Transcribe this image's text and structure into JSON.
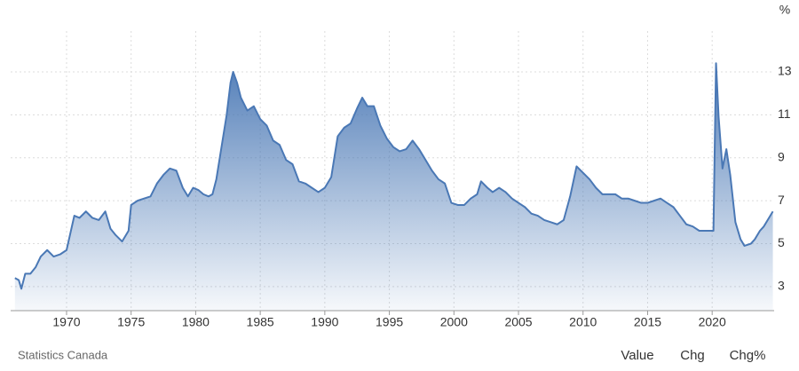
{
  "chart_data": {
    "type": "area",
    "unit": "%",
    "source": "Statistics Canada",
    "buttons": [
      "Value",
      "Chg",
      "Chg%"
    ],
    "active_button": 0,
    "color": "#4a78b5",
    "grid": true,
    "xlim": [
      1965.67,
      2024.8
    ],
    "xticks": [
      1970,
      1975,
      1980,
      1985,
      1990,
      1995,
      2000,
      2005,
      2010,
      2015,
      2020
    ],
    "ylim": [
      1.88,
      14.9
    ],
    "yticks": [
      3,
      5,
      7,
      9,
      11,
      13
    ],
    "x": [
      1966.0,
      1966.3,
      1966.5,
      1966.8,
      1967.2,
      1967.6,
      1968.0,
      1968.5,
      1969.0,
      1969.5,
      1970.0,
      1970.3,
      1970.6,
      1971.0,
      1971.5,
      1972.0,
      1972.5,
      1973.0,
      1973.4,
      1973.8,
      1974.3,
      1974.8,
      1975.0,
      1975.5,
      1976.0,
      1976.5,
      1977.0,
      1977.5,
      1978.0,
      1978.5,
      1979.0,
      1979.4,
      1979.8,
      1980.2,
      1980.6,
      1981.0,
      1981.3,
      1981.6,
      1982.0,
      1982.4,
      1982.7,
      1982.9,
      1983.2,
      1983.5,
      1984.0,
      1984.5,
      1985.0,
      1985.5,
      1986.0,
      1986.5,
      1987.0,
      1987.5,
      1988.0,
      1988.5,
      1989.0,
      1989.5,
      1990.0,
      1990.5,
      1991.0,
      1991.5,
      1992.0,
      1992.5,
      1992.9,
      1993.3,
      1993.8,
      1994.3,
      1994.8,
      1995.3,
      1995.8,
      1996.3,
      1996.8,
      1997.3,
      1997.8,
      1998.3,
      1998.8,
      1999.3,
      1999.8,
      2000.3,
      2000.8,
      2001.3,
      2001.8,
      2002.1,
      2002.6,
      2003.0,
      2003.5,
      2004.0,
      2004.5,
      2005.0,
      2005.5,
      2006.0,
      2006.5,
      2007.0,
      2007.5,
      2008.0,
      2008.5,
      2009.0,
      2009.5,
      2010.0,
      2010.5,
      2011.0,
      2011.5,
      2012.0,
      2012.5,
      2013.0,
      2013.5,
      2014.0,
      2014.5,
      2015.0,
      2015.5,
      2016.0,
      2016.5,
      2017.0,
      2017.5,
      2018.0,
      2018.5,
      2019.0,
      2019.5,
      2020.1,
      2020.3,
      2020.5,
      2020.8,
      2021.1,
      2021.4,
      2021.8,
      2022.2,
      2022.5,
      2023.0,
      2023.3,
      2023.7,
      2024.0,
      2024.4,
      2024.7
    ],
    "values": [
      3.4,
      3.3,
      2.9,
      3.6,
      3.6,
      3.9,
      4.4,
      4.7,
      4.4,
      4.5,
      4.7,
      5.5,
      6.3,
      6.2,
      6.5,
      6.2,
      6.1,
      6.5,
      5.7,
      5.4,
      5.1,
      5.6,
      6.8,
      7.0,
      7.1,
      7.2,
      7.8,
      8.2,
      8.5,
      8.4,
      7.6,
      7.2,
      7.6,
      7.5,
      7.3,
      7.2,
      7.3,
      8.0,
      9.5,
      11.0,
      12.5,
      13.0,
      12.5,
      11.8,
      11.2,
      11.4,
      10.8,
      10.5,
      9.8,
      9.6,
      8.9,
      8.7,
      7.9,
      7.8,
      7.6,
      7.4,
      7.6,
      8.1,
      10.0,
      10.4,
      10.6,
      11.3,
      11.8,
      11.4,
      11.4,
      10.5,
      9.9,
      9.5,
      9.3,
      9.4,
      9.8,
      9.4,
      8.9,
      8.4,
      8.0,
      7.8,
      6.9,
      6.8,
      6.8,
      7.1,
      7.3,
      7.9,
      7.6,
      7.4,
      7.6,
      7.4,
      7.1,
      6.9,
      6.7,
      6.4,
      6.3,
      6.1,
      6.0,
      5.9,
      6.1,
      7.2,
      8.6,
      8.3,
      8.0,
      7.6,
      7.3,
      7.3,
      7.3,
      7.1,
      7.1,
      7.0,
      6.9,
      6.9,
      7.0,
      7.1,
      6.9,
      6.7,
      6.3,
      5.9,
      5.8,
      5.6,
      5.6,
      5.6,
      13.4,
      10.9,
      8.5,
      9.4,
      8.2,
      6.0,
      5.2,
      4.9,
      5.0,
      5.2,
      5.6,
      5.8,
      6.2,
      6.5
    ]
  }
}
